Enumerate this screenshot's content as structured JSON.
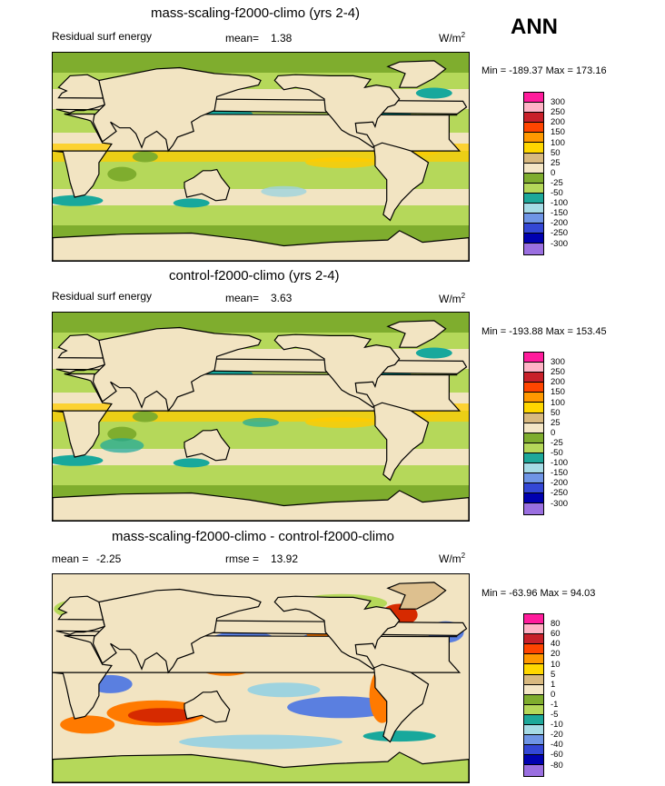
{
  "season": "ANN",
  "colors": {
    "sea_greens": "#7fad2e",
    "sea_light": "#b5d85a",
    "tan": "#ddc08f",
    "cream": "#f2e4c2",
    "yellow": "#ffcc00",
    "orange": "#ff7a00",
    "red": "#d62a00",
    "teal": "#18a89c",
    "lightblue": "#9ed3df",
    "blue": "#5a7fe0",
    "coast": "#000000"
  },
  "panels": [
    {
      "title": "mass-scaling-f2000-climo (yrs 2-4)",
      "left_label": "Residual surf energy",
      "stat_label": "mean=",
      "stat_value": "1.38",
      "units": "W/m",
      "units_sup": "2",
      "minmax": "Min = -189.37 Max = 173.16",
      "colorbar": {
        "levels": [
          "300",
          "250",
          "200",
          "150",
          "100",
          "50",
          "25",
          "0",
          "-25",
          "-50",
          "-100",
          "-150",
          "-200",
          "-250",
          "-300"
        ],
        "colors": [
          "#ff1c9c",
          "#ffb3c6",
          "#c8202a",
          "#ff4500",
          "#ff9900",
          "#ffd700",
          "#d8b980",
          "#f4e6c6",
          "#7fad2e",
          "#b5d85a",
          "#1ea89a",
          "#a6dbe6",
          "#6f95e6",
          "#3447d6",
          "#0000b0",
          "#9a6fe0"
        ]
      }
    },
    {
      "title": "control-f2000-climo (yrs 2-4)",
      "left_label": "Residual surf energy",
      "stat_label": "mean=",
      "stat_value": "3.63",
      "units": "W/m",
      "units_sup": "2",
      "minmax": "Min = -193.88 Max = 153.45",
      "colorbar": {
        "levels": [
          "300",
          "250",
          "200",
          "150",
          "100",
          "50",
          "25",
          "0",
          "-25",
          "-50",
          "-100",
          "-150",
          "-200",
          "-250",
          "-300"
        ],
        "colors": [
          "#ff1c9c",
          "#ffb3c6",
          "#c8202a",
          "#ff4500",
          "#ff9900",
          "#ffd700",
          "#d8b980",
          "#f4e6c6",
          "#7fad2e",
          "#b5d85a",
          "#1ea89a",
          "#a6dbe6",
          "#6f95e6",
          "#3447d6",
          "#0000b0",
          "#9a6fe0"
        ]
      }
    },
    {
      "title": "mass-scaling-f2000-climo - control-f2000-climo",
      "left_label": "mean =",
      "left_value": "-2.25",
      "stat_label": "rmse =",
      "stat_value": "13.92",
      "units": "W/m",
      "units_sup": "2",
      "minmax": "Min = -63.96 Max =  94.03",
      "colorbar": {
        "levels": [
          "80",
          "60",
          "40",
          "20",
          "10",
          "5",
          "1",
          "0",
          "-1",
          "-5",
          "-10",
          "-20",
          "-40",
          "-60",
          "-80"
        ],
        "colors": [
          "#ff1c9c",
          "#ffb3c6",
          "#c8202a",
          "#ff4500",
          "#ff9900",
          "#ffd700",
          "#d8b980",
          "#f4e6c6",
          "#7fad2e",
          "#b5d85a",
          "#1ea89a",
          "#a6dbe6",
          "#6f95e6",
          "#3447d6",
          "#0000b0",
          "#9a6fe0"
        ]
      }
    }
  ],
  "chart_data": [
    {
      "type": "heatmap",
      "title": "mass-scaling-f2000-climo (yrs 2-4)",
      "variable": "Residual surf energy",
      "units": "W/m2",
      "mean": 1.38,
      "min": -189.37,
      "max": 173.16,
      "contour_levels": [
        -300,
        -250,
        -200,
        -150,
        -100,
        -50,
        -25,
        0,
        25,
        50,
        100,
        150,
        200,
        250,
        300
      ]
    },
    {
      "type": "heatmap",
      "title": "control-f2000-climo (yrs 2-4)",
      "variable": "Residual surf energy",
      "units": "W/m2",
      "mean": 3.63,
      "min": -193.88,
      "max": 153.45,
      "contour_levels": [
        -300,
        -250,
        -200,
        -150,
        -100,
        -50,
        -25,
        0,
        25,
        50,
        100,
        150,
        200,
        250,
        300
      ]
    },
    {
      "type": "heatmap",
      "title": "mass-scaling-f2000-climo - control-f2000-climo",
      "units": "W/m2",
      "mean": -2.25,
      "rmse": 13.92,
      "min": -63.96,
      "max": 94.03,
      "contour_levels": [
        -80,
        -60,
        -40,
        -20,
        -10,
        -5,
        -1,
        0,
        1,
        5,
        10,
        20,
        40,
        60,
        80
      ]
    }
  ]
}
